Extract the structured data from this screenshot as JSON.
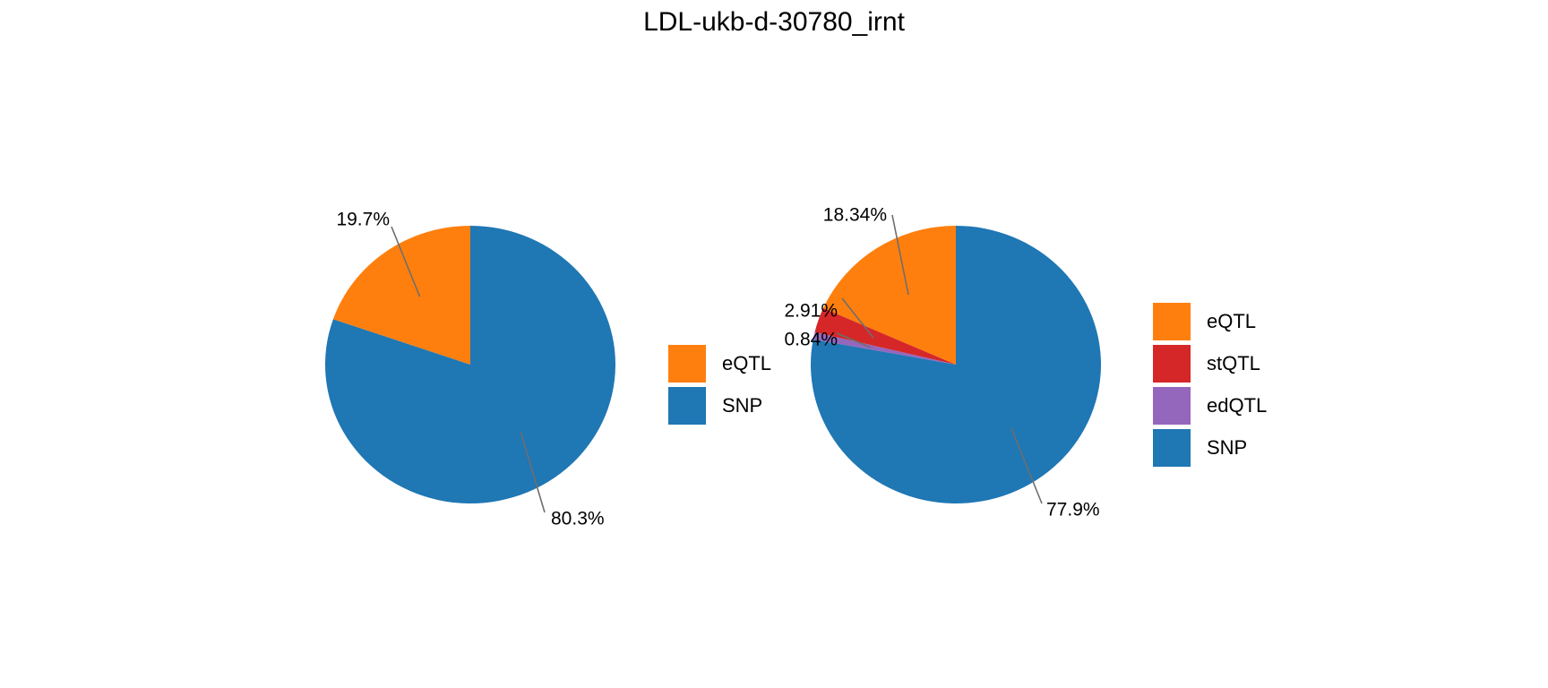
{
  "title": "LDL-ukb-d-30780_irnt",
  "colors": {
    "eQTL": "#ff7f0e",
    "SNP": "#1f77b4",
    "stQTL": "#d62728",
    "edQTL": "#9467bd"
  },
  "chart_data": [
    {
      "type": "pie",
      "slices": [
        {
          "name": "eQTL",
          "value": 19.7,
          "label": "19.7%",
          "color": "#ff7f0e"
        },
        {
          "name": "SNP",
          "value": 80.3,
          "label": "80.3%",
          "color": "#1f77b4"
        }
      ],
      "legend": [
        {
          "name": "eQTL",
          "color": "#ff7f0e"
        },
        {
          "name": "SNP",
          "color": "#1f77b4"
        }
      ],
      "legend_position": "right"
    },
    {
      "type": "pie",
      "slices": [
        {
          "name": "eQTL",
          "value": 18.34,
          "label": "18.34%",
          "color": "#ff7f0e"
        },
        {
          "name": "stQTL",
          "value": 2.91,
          "label": "2.91%",
          "color": "#d62728"
        },
        {
          "name": "edQTL",
          "value": 0.84,
          "label": "0.84%",
          "color": "#9467bd"
        },
        {
          "name": "SNP",
          "value": 77.9,
          "label": "77.9%",
          "color": "#1f77b4"
        }
      ],
      "legend": [
        {
          "name": "eQTL",
          "color": "#ff7f0e"
        },
        {
          "name": "stQTL",
          "color": "#d62728"
        },
        {
          "name": "edQTL",
          "color": "#9467bd"
        },
        {
          "name": "SNP",
          "color": "#1f77b4"
        }
      ],
      "legend_position": "right"
    }
  ]
}
